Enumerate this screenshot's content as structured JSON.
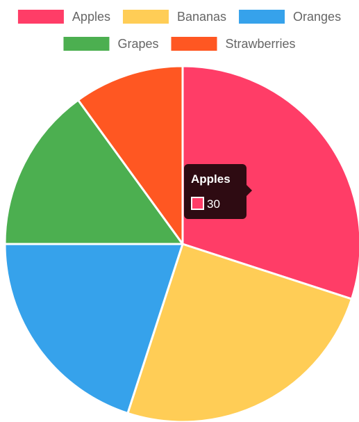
{
  "chart_data": {
    "type": "pie",
    "categories": [
      "Apples",
      "Bananas",
      "Oranges",
      "Grapes",
      "Strawberries"
    ],
    "values": [
      30,
      25,
      20,
      15,
      10
    ],
    "colors": [
      "#ff3d67",
      "#ffcd56",
      "#36a2eb",
      "#4caf50",
      "#ff5722"
    ],
    "legend_position": "top",
    "tooltip": {
      "category": "Apples",
      "value": "30",
      "color": "#ff3d67"
    }
  }
}
